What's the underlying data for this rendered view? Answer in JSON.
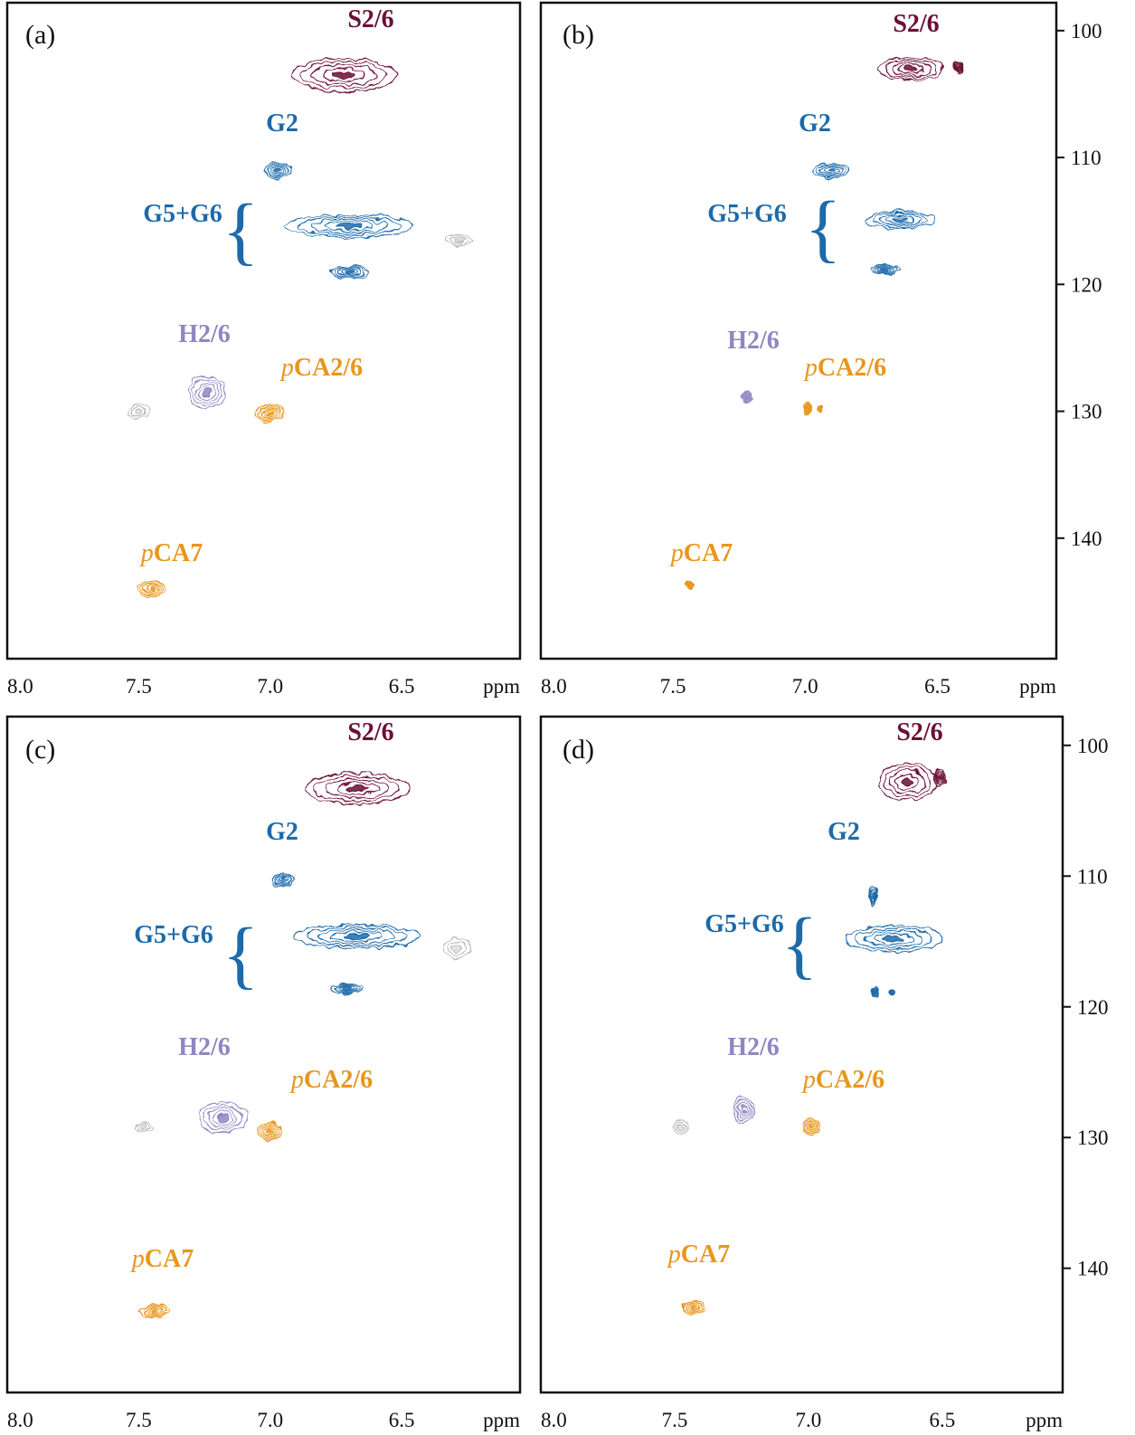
{
  "chart_data": {
    "type": "scatter",
    "subtype": "2D HSQC NMR contour spectra (aromatic region)",
    "x_axis": {
      "label": "ppm",
      "range": [
        8.0,
        6.05
      ],
      "reversed": true,
      "ticks": [
        8.0,
        7.5,
        7.0,
        6.5
      ],
      "tick_labels": [
        "8.0",
        "7.5",
        "7.0",
        "6.5"
      ],
      "unit_label": "ppm"
    },
    "y_axis": {
      "range": [
        97.8,
        149.5
      ],
      "reversed": true,
      "ticks": [
        100,
        110,
        120,
        130,
        140
      ],
      "tick_labels": [
        "100",
        "110",
        "120",
        "130",
        "140"
      ]
    },
    "colors": {
      "S": "#6b1036",
      "G": "#1c6aaa",
      "H": "#8f86c2",
      "pCA": "#e8961e",
      "noise": "#b8b8b8",
      "axis": "#111111"
    },
    "panels": [
      {
        "id": "a",
        "tag": "(a)",
        "labels": [
          {
            "text": "S2/6",
            "kind": "S"
          },
          {
            "text": "G2",
            "kind": "G"
          },
          {
            "text": "G5+G6",
            "kind": "G"
          },
          {
            "text": "H2/6",
            "kind": "H"
          },
          {
            "text": "pCA2/6",
            "kind": "pCA"
          },
          {
            "text": "pCA7",
            "kind": "pCA"
          }
        ],
        "peaks": [
          {
            "name": "S2/6",
            "kind": "S",
            "x": 6.72,
            "y": 103.5,
            "rx": 0.2,
            "ry": 1.3
          },
          {
            "name": "G2",
            "kind": "G",
            "x": 6.97,
            "y": 111.0,
            "rx": 0.05,
            "ry": 0.6
          },
          {
            "name": "G5+G6",
            "kind": "G",
            "x": 6.7,
            "y": 115.4,
            "rx": 0.24,
            "ry": 0.9
          },
          {
            "name": "G5+G6",
            "kind": "G",
            "x": 6.7,
            "y": 119.0,
            "rx": 0.07,
            "ry": 0.5
          },
          {
            "name": "H2/6",
            "kind": "H",
            "x": 7.24,
            "y": 128.5,
            "rx": 0.07,
            "ry": 1.3
          },
          {
            "name": "pCA2/6",
            "kind": "pCA",
            "x": 7.0,
            "y": 130.2,
            "rx": 0.05,
            "ry": 0.6
          },
          {
            "name": "pCA7",
            "kind": "pCA",
            "x": 7.45,
            "y": 144.0,
            "rx": 0.05,
            "ry": 0.6
          },
          {
            "name": "",
            "kind": "noise",
            "x": 7.5,
            "y": 130.0,
            "rx": 0.04,
            "ry": 0.5
          },
          {
            "name": "",
            "kind": "noise",
            "x": 6.28,
            "y": 116.5,
            "rx": 0.05,
            "ry": 0.4
          }
        ]
      },
      {
        "id": "b",
        "tag": "(b)",
        "labels": [
          {
            "text": "S2/6",
            "kind": "S"
          },
          {
            "text": "G2",
            "kind": "G"
          },
          {
            "text": "G5+G6",
            "kind": "G"
          },
          {
            "text": "H2/6",
            "kind": "H"
          },
          {
            "text": "pCA2/6",
            "kind": "pCA"
          },
          {
            "text": "pCA7",
            "kind": "pCA"
          }
        ],
        "peaks": [
          {
            "name": "S2/6",
            "kind": "S",
            "x": 6.6,
            "y": 103.0,
            "rx": 0.12,
            "ry": 0.9
          },
          {
            "name": "S2/6",
            "kind": "S",
            "x": 6.42,
            "y": 102.9,
            "rx": 0.015,
            "ry": 0.5
          },
          {
            "name": "G2",
            "kind": "G",
            "x": 6.9,
            "y": 111.0,
            "rx": 0.07,
            "ry": 0.6
          },
          {
            "name": "G5+G6",
            "kind": "G",
            "x": 6.64,
            "y": 114.9,
            "rx": 0.13,
            "ry": 0.7
          },
          {
            "name": "G5+G6",
            "kind": "G",
            "x": 6.7,
            "y": 118.8,
            "rx": 0.06,
            "ry": 0.4
          },
          {
            "name": "H2/6",
            "kind": "H",
            "x": 7.22,
            "y": 128.9,
            "rx": 0.02,
            "ry": 0.4
          },
          {
            "name": "pCA2/6",
            "kind": "pCA",
            "x": 6.99,
            "y": 129.8,
            "rx": 0.015,
            "ry": 0.4
          },
          {
            "name": "pCA2/6",
            "kind": "pCA",
            "x": 6.95,
            "y": 129.8,
            "rx": 0.01,
            "ry": 0.25
          },
          {
            "name": "pCA7",
            "kind": "pCA",
            "x": 7.44,
            "y": 143.7,
            "rx": 0.015,
            "ry": 0.35
          }
        ]
      },
      {
        "id": "c",
        "tag": "(c)",
        "labels": [
          {
            "text": "S2/6",
            "kind": "S"
          },
          {
            "text": "G2",
            "kind": "G"
          },
          {
            "text": "G5+G6",
            "kind": "G"
          },
          {
            "text": "H2/6",
            "kind": "H"
          },
          {
            "text": "pCA2/6",
            "kind": "pCA"
          },
          {
            "text": "pCA7",
            "kind": "pCA"
          }
        ],
        "peaks": [
          {
            "name": "S2/6",
            "kind": "S",
            "x": 6.67,
            "y": 103.3,
            "rx": 0.2,
            "ry": 1.2
          },
          {
            "name": "G2",
            "kind": "G",
            "x": 6.95,
            "y": 110.3,
            "rx": 0.04,
            "ry": 0.5
          },
          {
            "name": "G5+G6",
            "kind": "G",
            "x": 6.67,
            "y": 114.6,
            "rx": 0.24,
            "ry": 0.9
          },
          {
            "name": "G5+G6",
            "kind": "G",
            "x": 6.71,
            "y": 118.6,
            "rx": 0.06,
            "ry": 0.4
          },
          {
            "name": "H2/6",
            "kind": "H",
            "x": 7.18,
            "y": 128.5,
            "rx": 0.09,
            "ry": 1.2
          },
          {
            "name": "pCA2/6",
            "kind": "pCA",
            "x": 7.0,
            "y": 129.5,
            "rx": 0.05,
            "ry": 0.6
          },
          {
            "name": "pCA7",
            "kind": "pCA",
            "x": 7.44,
            "y": 143.3,
            "rx": 0.05,
            "ry": 0.5
          },
          {
            "name": "",
            "kind": "noise",
            "x": 7.48,
            "y": 129.3,
            "rx": 0.03,
            "ry": 0.4
          },
          {
            "name": "",
            "kind": "noise",
            "x": 6.29,
            "y": 115.5,
            "rx": 0.05,
            "ry": 0.8
          }
        ]
      },
      {
        "id": "d",
        "tag": "(d)",
        "labels": [
          {
            "text": "S2/6",
            "kind": "S"
          },
          {
            "text": "G2",
            "kind": "G"
          },
          {
            "text": "G5+G6",
            "kind": "G"
          },
          {
            "text": "H2/6",
            "kind": "H"
          },
          {
            "text": "pCA2/6",
            "kind": "pCA"
          },
          {
            "text": "pCA7",
            "kind": "pCA"
          }
        ],
        "peaks": [
          {
            "name": "S2/6",
            "kind": "S",
            "x": 6.63,
            "y": 102.8,
            "rx": 0.11,
            "ry": 1.4
          },
          {
            "name": "S2/6",
            "kind": "S",
            "x": 6.51,
            "y": 102.5,
            "rx": 0.02,
            "ry": 0.7
          },
          {
            "name": "G2",
            "kind": "G",
            "x": 6.76,
            "y": 111.6,
            "rx": 0.012,
            "ry": 0.8
          },
          {
            "name": "G5+G6",
            "kind": "G",
            "x": 6.68,
            "y": 114.8,
            "rx": 0.18,
            "ry": 1.0
          },
          {
            "name": "G5+G6",
            "kind": "G",
            "x": 6.75,
            "y": 118.9,
            "rx": 0.012,
            "ry": 0.4
          },
          {
            "name": "G5+G6",
            "kind": "G",
            "x": 6.69,
            "y": 118.9,
            "rx": 0.01,
            "ry": 0.3
          },
          {
            "name": "H2/6",
            "kind": "H",
            "x": 7.24,
            "y": 127.9,
            "rx": 0.04,
            "ry": 1.0
          },
          {
            "name": "pCA2/6",
            "kind": "pCA",
            "x": 6.99,
            "y": 129.2,
            "rx": 0.03,
            "ry": 0.6
          },
          {
            "name": "pCA7",
            "kind": "pCA",
            "x": 7.43,
            "y": 143.0,
            "rx": 0.04,
            "ry": 0.5
          },
          {
            "name": "",
            "kind": "noise",
            "x": 7.48,
            "y": 129.2,
            "rx": 0.025,
            "ry": 0.5
          }
        ]
      }
    ]
  }
}
